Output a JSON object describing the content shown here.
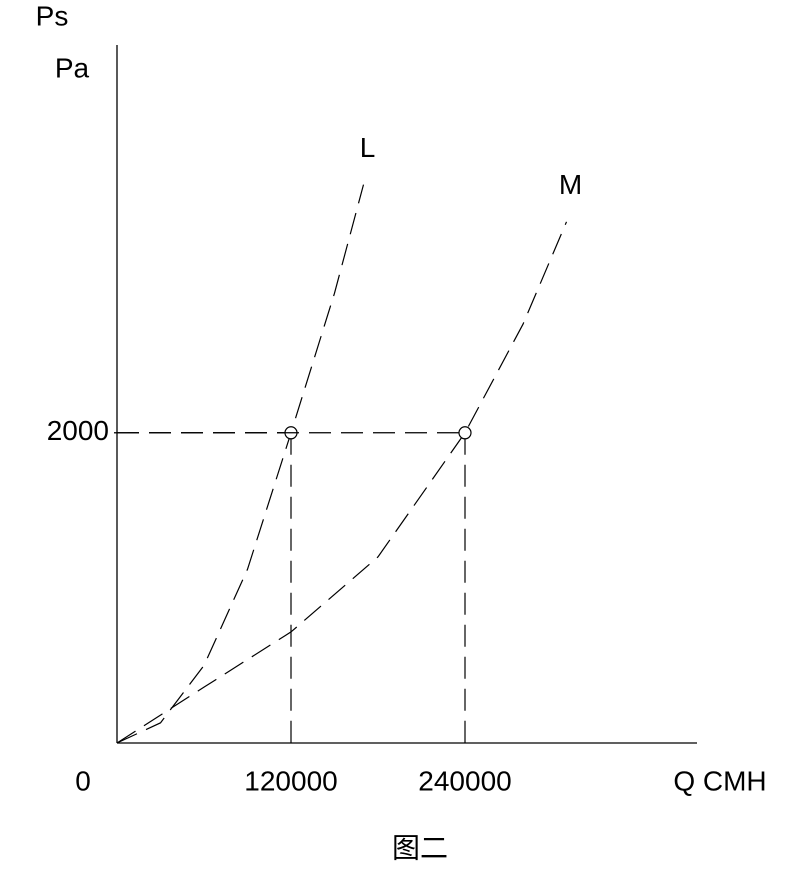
{
  "chart_data": {
    "type": "line",
    "y_label_lines": [
      "Ps",
      "Pa"
    ],
    "x_label": "Q CMH",
    "caption": "图二",
    "xlim": [
      0,
      400000
    ],
    "ylim": [
      0,
      4500
    ],
    "xticks": [
      0,
      120000,
      240000
    ],
    "yticks": [
      2000
    ],
    "line_style": "dashed",
    "series": [
      {
        "name": "L",
        "color": "#000000",
        "x": [
          0,
          30000,
          60000,
          90000,
          120000,
          150000,
          170000
        ],
        "values": [
          0,
          130,
          500,
          1120,
          2000,
          2900,
          3600
        ]
      },
      {
        "name": "M",
        "color": "#000000",
        "x": [
          0,
          60000,
          120000,
          180000,
          240000,
          280000,
          310000
        ],
        "values": [
          0,
          360,
          716,
          1200,
          2000,
          2700,
          3360
        ]
      }
    ],
    "markers": [
      {
        "x": 120000,
        "y": 2000
      },
      {
        "x": 240000,
        "y": 2000
      }
    ]
  }
}
